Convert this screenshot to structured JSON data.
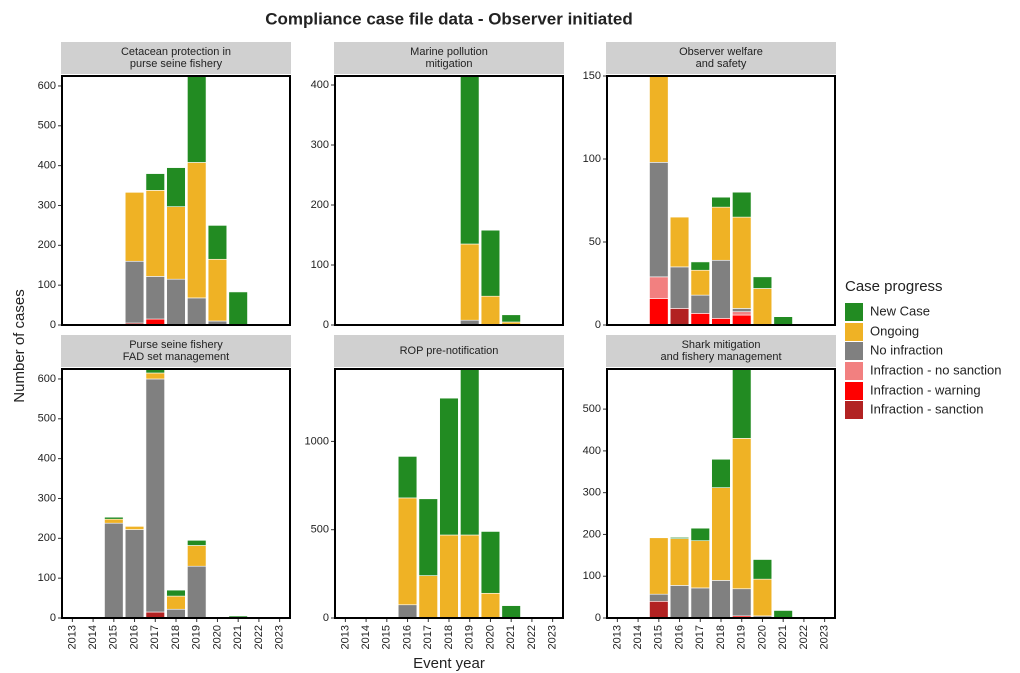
{
  "title": "Compliance case file data - Observer initiated",
  "x_label": "Event year",
  "y_label": "Number of cases",
  "legend_title": "Case progress",
  "chart_data": [
    {
      "type": "bar",
      "stacked": true,
      "title": [
        "Cetacean protection in",
        "purse seine fishery"
      ],
      "categories": [
        "2013",
        "2014",
        "2015",
        "2016",
        "2017",
        "2018",
        "2019",
        "2020",
        "2021",
        "2022",
        "2023"
      ],
      "series": [
        {
          "name": "New Case",
          "color": "#228b22",
          "values": [
            0,
            0,
            0,
            0,
            42,
            98,
            217,
            85,
            83,
            0,
            0
          ]
        },
        {
          "name": "Ongoing",
          "color": "#efb225",
          "values": [
            0,
            0,
            0,
            173,
            216,
            182,
            340,
            155,
            0,
            0,
            0
          ]
        },
        {
          "name": "No infraction",
          "color": "#808080",
          "values": [
            0,
            0,
            0,
            155,
            107,
            115,
            68,
            10,
            0,
            0,
            0
          ]
        },
        {
          "name": "Infraction - no sanction",
          "color": "#f28080",
          "values": [
            0,
            0,
            0,
            0,
            0,
            0,
            0,
            0,
            0,
            0,
            0
          ]
        },
        {
          "name": "Infraction - warning",
          "color": "#ff0000",
          "values": [
            0,
            0,
            0,
            0,
            15,
            0,
            0,
            0,
            0,
            0,
            0
          ]
        },
        {
          "name": "Infraction - sanction",
          "color": "#b22222",
          "values": [
            0,
            0,
            0,
            5,
            0,
            0,
            0,
            0,
            0,
            0,
            0
          ]
        }
      ],
      "ylim": [
        0,
        625
      ],
      "yticks": [
        0,
        100,
        200,
        300,
        400,
        500,
        600
      ]
    },
    {
      "type": "bar",
      "stacked": true,
      "title": [
        "Marine pollution",
        "mitigation"
      ],
      "categories": [
        "2013",
        "2014",
        "2015",
        "2016",
        "2017",
        "2018",
        "2019",
        "2020",
        "2021",
        "2022",
        "2023"
      ],
      "series": [
        {
          "name": "New Case",
          "color": "#228b22",
          "values": [
            0,
            0,
            0,
            0,
            0,
            0,
            280,
            110,
            12,
            0,
            0
          ]
        },
        {
          "name": "Ongoing",
          "color": "#efb225",
          "values": [
            0,
            0,
            0,
            0,
            0,
            0,
            127,
            48,
            5,
            0,
            0
          ]
        },
        {
          "name": "No infraction",
          "color": "#808080",
          "values": [
            0,
            0,
            0,
            0,
            0,
            0,
            8,
            0,
            0,
            0,
            0
          ]
        },
        {
          "name": "Infraction - no sanction",
          "color": "#f28080",
          "values": [
            0,
            0,
            0,
            0,
            0,
            0,
            0,
            0,
            0,
            0,
            0
          ]
        },
        {
          "name": "Infraction - warning",
          "color": "#ff0000",
          "values": [
            0,
            0,
            0,
            0,
            0,
            0,
            0,
            0,
            0,
            0,
            0
          ]
        },
        {
          "name": "Infraction - sanction",
          "color": "#b22222",
          "values": [
            0,
            0,
            0,
            0,
            0,
            0,
            0,
            0,
            0,
            0,
            0
          ]
        }
      ],
      "ylim": [
        0,
        415
      ],
      "yticks": [
        0,
        100,
        200,
        300,
        400
      ]
    },
    {
      "type": "bar",
      "stacked": true,
      "title": [
        "Observer welfare",
        "and safety"
      ],
      "categories": [
        "2013",
        "2014",
        "2015",
        "2016",
        "2017",
        "2018",
        "2019",
        "2020",
        "2021",
        "2022",
        "2023"
      ],
      "series": [
        {
          "name": "New Case",
          "color": "#228b22",
          "values": [
            0,
            0,
            0,
            0,
            5,
            6,
            15,
            7,
            5,
            0,
            0
          ]
        },
        {
          "name": "Ongoing",
          "color": "#efb225",
          "values": [
            0,
            0,
            52,
            30,
            15,
            32,
            55,
            22,
            0,
            0,
            0
          ]
        },
        {
          "name": "No infraction",
          "color": "#808080",
          "values": [
            0,
            0,
            69,
            25,
            11,
            35,
            2,
            0,
            0,
            0,
            0
          ]
        },
        {
          "name": "Infraction - no sanction",
          "color": "#f28080",
          "values": [
            0,
            0,
            13,
            0,
            0,
            0,
            2,
            0,
            0,
            0,
            0
          ]
        },
        {
          "name": "Infraction - warning",
          "color": "#ff0000",
          "values": [
            0,
            0,
            16,
            0,
            7,
            4,
            6,
            0,
            0,
            0,
            0
          ]
        },
        {
          "name": "Infraction - sanction",
          "color": "#b22222",
          "values": [
            0,
            0,
            0,
            10,
            0,
            0,
            0,
            0,
            0,
            0,
            0
          ]
        }
      ],
      "ylim": [
        0,
        150
      ],
      "yticks": [
        0,
        50,
        100,
        150
      ]
    },
    {
      "type": "bar",
      "stacked": true,
      "title": [
        "Purse seine fishery",
        "FAD set management"
      ],
      "categories": [
        "2013",
        "2014",
        "2015",
        "2016",
        "2017",
        "2018",
        "2019",
        "2020",
        "2021",
        "2022",
        "2023"
      ],
      "series": [
        {
          "name": "New Case",
          "color": "#228b22",
          "values": [
            0,
            0,
            5,
            0,
            10,
            15,
            13,
            0,
            5,
            0,
            0
          ]
        },
        {
          "name": "Ongoing",
          "color": "#efb225",
          "values": [
            0,
            0,
            10,
            8,
            15,
            33,
            52,
            0,
            0,
            0,
            0
          ]
        },
        {
          "name": "No infraction",
          "color": "#808080",
          "values": [
            0,
            0,
            238,
            222,
            585,
            22,
            130,
            0,
            0,
            0,
            0
          ]
        },
        {
          "name": "Infraction - no sanction",
          "color": "#f28080",
          "values": [
            0,
            0,
            0,
            0,
            0,
            0,
            0,
            0,
            0,
            0,
            0
          ]
        },
        {
          "name": "Infraction - warning",
          "color": "#ff0000",
          "values": [
            0,
            0,
            0,
            0,
            0,
            0,
            0,
            0,
            0,
            0,
            0
          ]
        },
        {
          "name": "Infraction - sanction",
          "color": "#b22222",
          "values": [
            0,
            0,
            0,
            0,
            15,
            0,
            0,
            0,
            0,
            0,
            0
          ]
        }
      ],
      "ylim": [
        0,
        625
      ],
      "yticks": [
        0,
        100,
        200,
        300,
        400,
        500,
        600
      ]
    },
    {
      "type": "bar",
      "stacked": true,
      "title": [
        "ROP pre-notification"
      ],
      "categories": [
        "2013",
        "2014",
        "2015",
        "2016",
        "2017",
        "2018",
        "2019",
        "2020",
        "2021",
        "2022",
        "2023"
      ],
      "series": [
        {
          "name": "New Case",
          "color": "#228b22",
          "values": [
            0,
            0,
            0,
            235,
            435,
            775,
            940,
            350,
            70,
            0,
            0
          ]
        },
        {
          "name": "Ongoing",
          "color": "#efb225",
          "values": [
            0,
            0,
            0,
            605,
            240,
            470,
            470,
            140,
            0,
            0,
            0
          ]
        },
        {
          "name": "No infraction",
          "color": "#808080",
          "values": [
            0,
            0,
            0,
            75,
            0,
            0,
            0,
            0,
            0,
            0,
            0
          ]
        },
        {
          "name": "Infraction - no sanction",
          "color": "#f28080",
          "values": [
            0,
            0,
            0,
            0,
            0,
            0,
            0,
            0,
            0,
            0,
            0
          ]
        },
        {
          "name": "Infraction - warning",
          "color": "#ff0000",
          "values": [
            0,
            0,
            0,
            0,
            0,
            0,
            0,
            0,
            0,
            0,
            0
          ]
        },
        {
          "name": "Infraction - sanction",
          "color": "#b22222",
          "values": [
            0,
            0,
            0,
            0,
            0,
            0,
            0,
            0,
            0,
            0,
            0
          ]
        }
      ],
      "ylim": [
        0,
        1410
      ],
      "yticks": [
        0,
        500,
        1000
      ]
    },
    {
      "type": "bar",
      "stacked": true,
      "title": [
        "Shark mitigation",
        "and fishery management"
      ],
      "categories": [
        "2013",
        "2014",
        "2015",
        "2016",
        "2017",
        "2018",
        "2019",
        "2020",
        "2021",
        "2022",
        "2023"
      ],
      "series": [
        {
          "name": "New Case",
          "color": "#228b22",
          "values": [
            0,
            0,
            0,
            3,
            30,
            68,
            166,
            47,
            18,
            0,
            0
          ]
        },
        {
          "name": "Ongoing",
          "color": "#efb225",
          "values": [
            0,
            0,
            135,
            112,
            113,
            222,
            360,
            88,
            0,
            0,
            0
          ]
        },
        {
          "name": "No infraction",
          "color": "#808080",
          "values": [
            0,
            0,
            17,
            78,
            72,
            90,
            65,
            5,
            0,
            0,
            0
          ]
        },
        {
          "name": "Infraction - no sanction",
          "color": "#f28080",
          "values": [
            0,
            0,
            0,
            0,
            0,
            0,
            0,
            0,
            0,
            0,
            0
          ]
        },
        {
          "name": "Infraction - warning",
          "color": "#ff0000",
          "values": [
            0,
            0,
            0,
            0,
            0,
            0,
            5,
            0,
            0,
            0,
            0
          ]
        },
        {
          "name": "Infraction - sanction",
          "color": "#b22222",
          "values": [
            0,
            0,
            40,
            0,
            0,
            0,
            0,
            0,
            0,
            0,
            0
          ]
        }
      ],
      "ylim": [
        0,
        596
      ],
      "yticks": [
        0,
        100,
        200,
        300,
        400,
        500
      ]
    }
  ]
}
